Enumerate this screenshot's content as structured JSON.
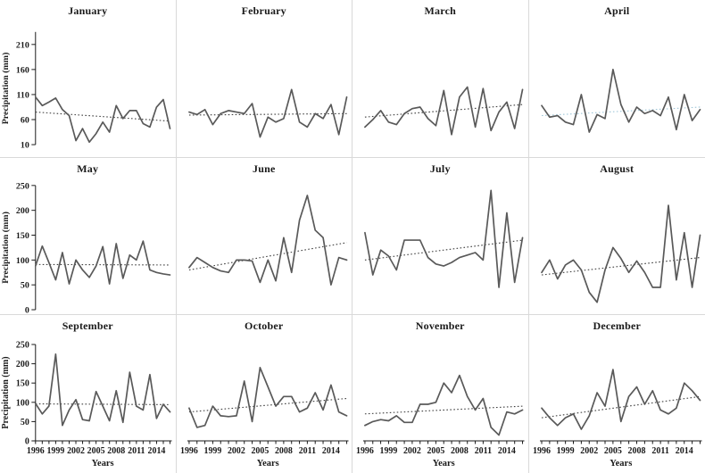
{
  "page": {
    "background": "#ffffff",
    "panel_border": "#d9d9d9"
  },
  "style": {
    "series_color": "#595959",
    "trend_color": "#3f3f3f",
    "april_trend_color": "#9fc6d8",
    "text_color": "#1a1a1a"
  },
  "axes": {
    "ylabel": "Precipitation (mm)",
    "xlabel": "Years",
    "x_years": [
      1996,
      1997,
      1998,
      1999,
      2000,
      2001,
      2002,
      2003,
      2004,
      2005,
      2006,
      2007,
      2008,
      2009,
      2010,
      2011,
      2012,
      2013,
      2014,
      2015,
      2016
    ],
    "xtick_labels": [
      "1996",
      "1999",
      "2002",
      "2005",
      "2008",
      "2011",
      "2014"
    ],
    "rows": [
      {
        "yticks": [
          10,
          60,
          110,
          160,
          210
        ],
        "ylim": [
          10,
          235
        ]
      },
      {
        "yticks": [
          0,
          50,
          100,
          150,
          200,
          250
        ],
        "ylim": [
          0,
          250
        ]
      },
      {
        "yticks": [
          0,
          50,
          100,
          150,
          200,
          250
        ],
        "ylim": [
          0,
          250
        ]
      }
    ]
  },
  "chart_data": [
    {
      "type": "line",
      "title": "January",
      "x_start": 1996,
      "x_end": 2016,
      "values": [
        105,
        88,
        95,
        103,
        80,
        68,
        18,
        42,
        15,
        32,
        55,
        35,
        88,
        62,
        78,
        78,
        52,
        45,
        85,
        100,
        42
      ],
      "trendline": {
        "start": 75,
        "end": 57
      }
    },
    {
      "type": "line",
      "title": "February",
      "x_start": 1996,
      "x_end": 2016,
      "values": [
        75,
        70,
        80,
        50,
        72,
        78,
        75,
        72,
        92,
        25,
        65,
        55,
        62,
        120,
        55,
        45,
        72,
        62,
        90,
        30,
        105
      ],
      "trendline": {
        "start": 69,
        "end": 72
      }
    },
    {
      "type": "line",
      "title": "March",
      "x_start": 1996,
      "x_end": 2016,
      "values": [
        45,
        60,
        78,
        55,
        50,
        72,
        82,
        85,
        62,
        48,
        118,
        30,
        105,
        125,
        45,
        122,
        38,
        75,
        95,
        42,
        120
      ],
      "trendline": {
        "start": 65,
        "end": 90
      }
    },
    {
      "type": "line",
      "title": "April",
      "x_start": 1996,
      "x_end": 2016,
      "values": [
        88,
        65,
        68,
        55,
        50,
        110,
        35,
        70,
        62,
        160,
        90,
        55,
        85,
        72,
        78,
        68,
        105,
        40,
        110,
        58,
        80
      ],
      "trendline": {
        "start": 68,
        "end": 85,
        "color": "#9fc6d8"
      }
    },
    {
      "type": "line",
      "title": "May",
      "x_start": 1996,
      "x_end": 2016,
      "values": [
        88,
        128,
        95,
        60,
        115,
        52,
        100,
        80,
        65,
        88,
        127,
        52,
        133,
        63,
        110,
        100,
        138,
        80,
        75,
        72,
        70
      ],
      "trendline": {
        "start": 91,
        "end": 90
      }
    },
    {
      "type": "line",
      "title": "June",
      "x_start": 1996,
      "x_end": 2016,
      "values": [
        85,
        105,
        95,
        85,
        78,
        75,
        100,
        100,
        98,
        55,
        100,
        58,
        145,
        75,
        180,
        230,
        160,
        145,
        50,
        105,
        100
      ],
      "trendline": {
        "start": 80,
        "end": 135
      }
    },
    {
      "type": "line",
      "title": "July",
      "x_start": 1996,
      "x_end": 2016,
      "values": [
        155,
        70,
        120,
        108,
        80,
        140,
        140,
        140,
        105,
        92,
        88,
        95,
        105,
        110,
        115,
        100,
        240,
        45,
        195,
        55,
        145
      ],
      "trendline": {
        "start": 100,
        "end": 140
      }
    },
    {
      "type": "line",
      "title": "August",
      "x_start": 1996,
      "x_end": 2016,
      "values": [
        75,
        100,
        62,
        90,
        100,
        80,
        35,
        15,
        80,
        125,
        103,
        75,
        98,
        75,
        45,
        45,
        210,
        60,
        155,
        45,
        150
      ],
      "trendline": {
        "start": 70,
        "end": 105
      }
    },
    {
      "type": "line",
      "title": "September",
      "x_start": 1996,
      "x_end": 2016,
      "values": [
        97,
        70,
        90,
        225,
        40,
        80,
        107,
        55,
        52,
        128,
        90,
        52,
        130,
        48,
        178,
        90,
        80,
        172,
        58,
        95,
        75
      ],
      "trendline": {
        "start": 96,
        "end": 94
      }
    },
    {
      "type": "line",
      "title": "October",
      "x_start": 1996,
      "x_end": 2016,
      "values": [
        85,
        35,
        40,
        90,
        65,
        63,
        65,
        155,
        50,
        190,
        140,
        90,
        115,
        115,
        75,
        85,
        125,
        80,
        145,
        75,
        65
      ],
      "trendline": {
        "start": 75,
        "end": 110
      }
    },
    {
      "type": "line",
      "title": "November",
      "x_start": 1996,
      "x_end": 2016,
      "values": [
        40,
        50,
        55,
        52,
        65,
        48,
        48,
        95,
        95,
        100,
        150,
        125,
        170,
        115,
        80,
        110,
        35,
        15,
        75,
        70,
        80
      ],
      "trendline": {
        "start": 70,
        "end": 90
      }
    },
    {
      "type": "line",
      "title": "December",
      "x_start": 1996,
      "x_end": 2016,
      "values": [
        85,
        60,
        40,
        60,
        70,
        30,
        65,
        125,
        90,
        185,
        50,
        115,
        140,
        95,
        130,
        80,
        70,
        85,
        150,
        130,
        105
      ],
      "trendline": {
        "start": 60,
        "end": 115
      }
    }
  ]
}
